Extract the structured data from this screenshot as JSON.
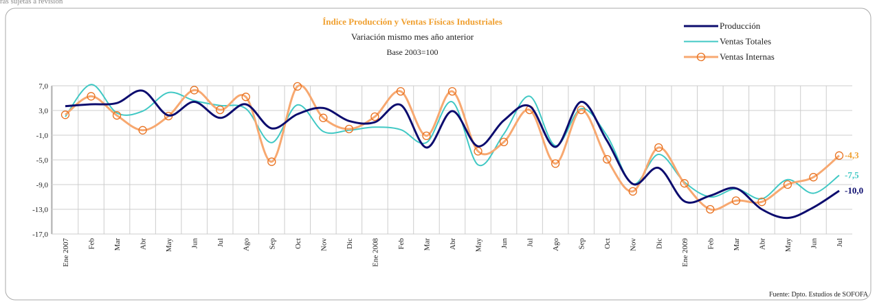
{
  "note_top": "ras sujetas a revisión",
  "chart_data": {
    "type": "line",
    "title": "Índice  Producción y Ventas Físicas Industriales",
    "subtitle": "Variación mismo mes año anterior",
    "subtitle2": "Base 2003=100",
    "source": "Fuente: Dpto. Estudios  de SOFOFA",
    "categories": [
      "Ene 2007",
      "Feb",
      "Mar",
      "Abr",
      "May",
      "Jun",
      "Jul",
      "Ago",
      "Sep",
      "Oct",
      "Nov",
      "Dic",
      "Ene 2008",
      "Feb",
      "Mar",
      "Abr",
      "May",
      "Jun",
      "Jul",
      "Ago",
      "Sep",
      "Oct",
      "Nov",
      "Dic",
      "Ene 2009",
      "Feb",
      "Mar",
      "Abr",
      "May",
      "Jun",
      "Jul"
    ],
    "series": [
      {
        "name": "Producción",
        "color": "#0c0c6e",
        "width": 3,
        "markers": false,
        "values": [
          3.7,
          4.0,
          4.2,
          6.2,
          2.2,
          4.4,
          1.8,
          4.0,
          0.1,
          2.4,
          3.4,
          1.3,
          1.1,
          3.9,
          -3.0,
          2.9,
          -2.8,
          1.4,
          3.7,
          -2.9,
          4.4,
          -1.9,
          -8.9,
          -6.3,
          -11.7,
          -10.8,
          -9.6,
          -13.0,
          -14.4,
          -12.7,
          -10.0
        ],
        "value_labels": [
          null,
          null,
          null,
          null,
          null,
          null,
          null,
          null,
          null,
          null,
          null,
          null,
          null,
          null,
          null,
          null,
          null,
          null,
          null,
          null,
          null,
          null,
          null,
          null,
          null,
          null,
          null,
          null,
          null,
          null,
          "-10,0"
        ]
      },
      {
        "name": "Ventas Totales",
        "color": "#40c8c4",
        "width": 2,
        "markers": false,
        "values": [
          2.0,
          7.2,
          2.6,
          2.9,
          5.9,
          4.6,
          3.8,
          3.3,
          -2.2,
          3.9,
          -0.4,
          -0.2,
          0.3,
          -0.1,
          -2.2,
          4.4,
          -5.8,
          -0.8,
          5.3,
          -2.7,
          3.3,
          -1.1,
          -8.9,
          -4.1,
          -8.6,
          -11.0,
          -9.7,
          -11.3,
          -8.2,
          -10.4,
          -7.5
        ],
        "value_labels": [
          null,
          null,
          null,
          null,
          null,
          null,
          null,
          null,
          null,
          null,
          null,
          null,
          null,
          null,
          null,
          null,
          null,
          null,
          null,
          null,
          null,
          null,
          null,
          null,
          null,
          null,
          null,
          null,
          null,
          null,
          "-7,5"
        ]
      },
      {
        "name": "Ventas Internas",
        "color": "#f7a870",
        "marker_color": "#e8701e",
        "width": 3,
        "markers": true,
        "values": [
          2.3,
          5.3,
          2.2,
          -0.2,
          2.1,
          6.3,
          3.1,
          5.2,
          -5.3,
          6.9,
          1.8,
          0.0,
          2.0,
          6.1,
          -1.1,
          6.1,
          -3.6,
          -2.1,
          3.1,
          -5.6,
          3.1,
          -4.9,
          -10.1,
          -3.0,
          -8.8,
          -13.0,
          -11.6,
          -11.8,
          -9.0,
          -7.8,
          -4.3
        ],
        "value_labels": [
          null,
          null,
          null,
          null,
          null,
          null,
          null,
          null,
          null,
          null,
          null,
          null,
          null,
          null,
          null,
          null,
          null,
          null,
          null,
          null,
          null,
          null,
          null,
          null,
          null,
          null,
          null,
          null,
          null,
          null,
          "-4,3"
        ]
      }
    ],
    "label_colors": [
      "#0c0c6e",
      "#40c8c4",
      "#f0a030"
    ],
    "ylim": [
      -17,
      7
    ],
    "yticks": [
      {
        "value": -17,
        "label": "-17,0"
      },
      {
        "value": -13,
        "label": "-13,0"
      },
      {
        "value": -9,
        "label": "-9,0"
      },
      {
        "value": -5,
        "label": "-5,0"
      },
      {
        "value": -1,
        "label": "-1,0"
      },
      {
        "value": 3,
        "label": "3,0"
      },
      {
        "value": 7,
        "label": "7,0"
      }
    ],
    "grid": true,
    "title_color": "#f0a030"
  }
}
